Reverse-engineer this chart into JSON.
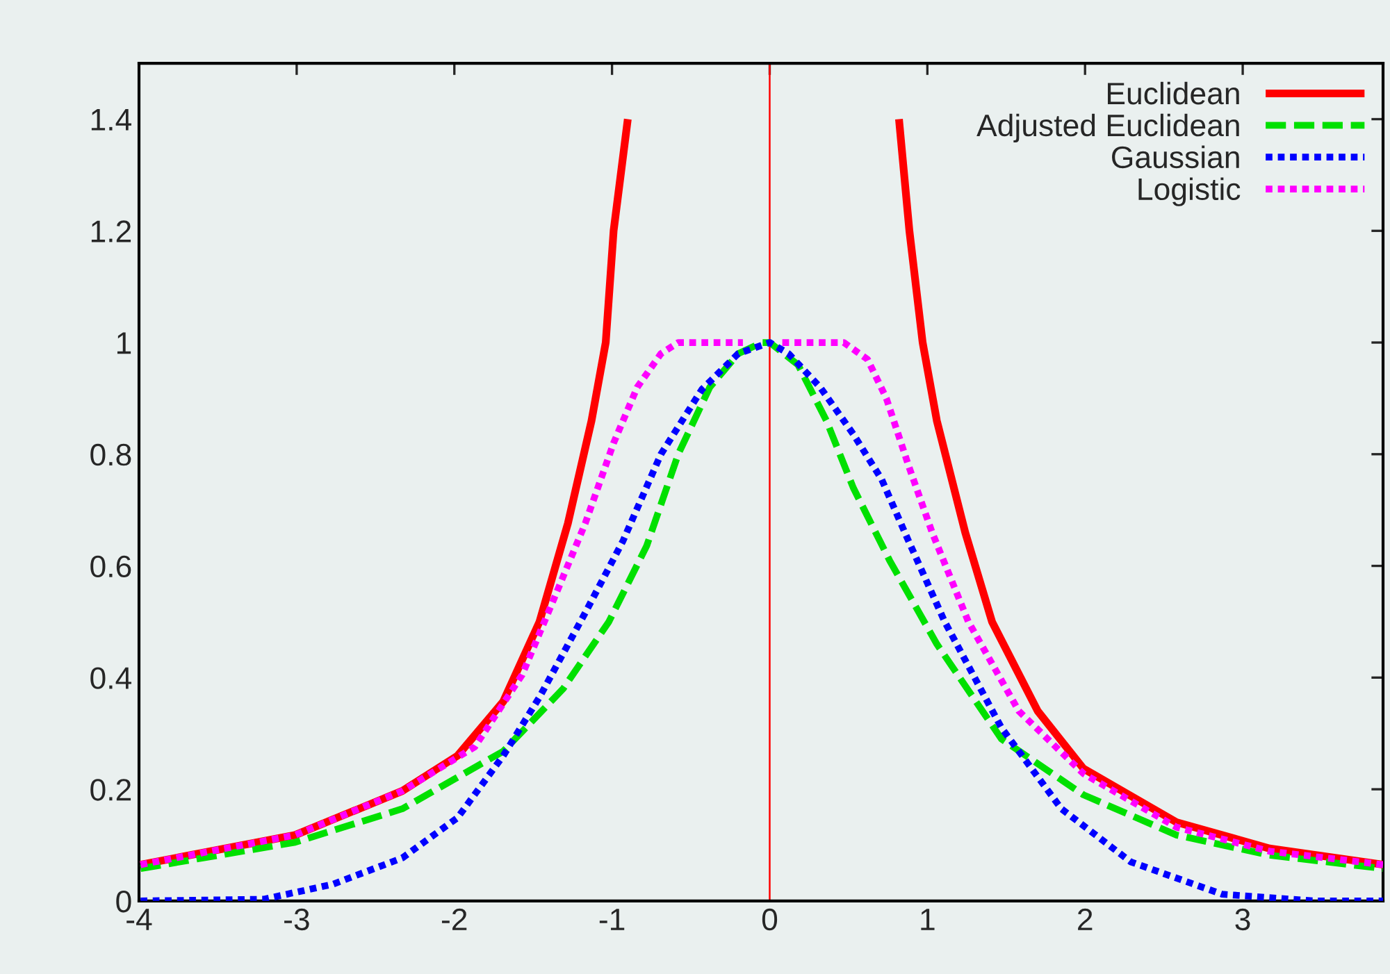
{
  "chart_data": {
    "type": "line",
    "xlim": [
      -4,
      3.89
    ],
    "ylim": [
      0,
      1.5
    ],
    "xticks": [
      -4,
      -3,
      -2,
      -1,
      0,
      1,
      2,
      3
    ],
    "yticks": [
      0,
      0.2,
      0.4,
      0.6,
      0.8,
      1,
      1.2,
      1.4
    ],
    "grid": false,
    "legend": "top right",
    "ref_lines": [
      {
        "axis": "x",
        "value": 0,
        "color": "#ff0000"
      }
    ],
    "series": [
      {
        "name": "Euclidean",
        "color": "#ff0000",
        "line_style": "solid",
        "x": [
          -3.99,
          -3.01,
          -2.33,
          -1.98,
          -1.69,
          -1.46,
          -1.28,
          -1.13,
          -1.04,
          -0.99,
          -0.9,
          null,
          0.82,
          0.886,
          0.97,
          1.06,
          1.24,
          1.41,
          1.7,
          1.99,
          2.58,
          3.17,
          3.89
        ],
        "values": [
          0.065,
          0.118,
          0.197,
          0.26,
          0.357,
          0.5,
          0.676,
          0.86,
          1.0,
          1.2,
          1.4,
          null,
          1.4,
          1.2,
          1.0,
          0.86,
          0.66,
          0.5,
          0.34,
          0.237,
          0.141,
          0.094,
          0.065
        ]
      },
      {
        "name": "Adjusted Euclidean",
        "color": "#00e000",
        "line_style": "dashed",
        "x": [
          -3.99,
          -3.01,
          -2.33,
          -1.69,
          -1.31,
          -1.02,
          -0.78,
          -0.58,
          -0.38,
          -0.2,
          -0.05,
          0.0,
          0.18,
          0.36,
          0.53,
          0.76,
          1.06,
          1.47,
          1.99,
          2.58,
          3.17,
          3.89
        ],
        "values": [
          0.058,
          0.105,
          0.165,
          0.268,
          0.38,
          0.5,
          0.636,
          0.8,
          0.92,
          0.98,
          1.0,
          1.0,
          0.96,
          0.86,
          0.74,
          0.61,
          0.46,
          0.29,
          0.19,
          0.118,
          0.082,
          0.058
        ]
      },
      {
        "name": "Gaussian",
        "color": "#0000ff",
        "line_style": "dotted",
        "x": [
          -3.99,
          -3.21,
          -2.77,
          -2.33,
          -1.98,
          -1.69,
          -1.46,
          -1.17,
          -0.93,
          -0.69,
          -0.43,
          -0.2,
          0.0,
          0.12,
          0.32,
          0.53,
          0.71,
          0.88,
          1.11,
          1.47,
          1.85,
          2.29,
          2.87,
          3.46,
          3.89
        ],
        "values": [
          0.0,
          0.003,
          0.03,
          0.077,
          0.149,
          0.26,
          0.365,
          0.516,
          0.645,
          0.8,
          0.916,
          0.98,
          1.0,
          0.98,
          0.92,
          0.836,
          0.755,
          0.645,
          0.5,
          0.31,
          0.165,
          0.07,
          0.012,
          0.0,
          0.0
        ]
      },
      {
        "name": "Logistic",
        "color": "#ff00ff",
        "line_style": "dotted",
        "x": [
          -3.99,
          -3.01,
          -2.33,
          -1.87,
          -1.57,
          -1.37,
          -1.17,
          -0.99,
          -0.84,
          -0.69,
          -0.58,
          -0.17,
          null,
          0.08,
          0.47,
          0.62,
          0.74,
          0.88,
          1.03,
          1.26,
          1.58,
          1.99,
          2.58,
          3.17,
          3.89
        ],
        "values": [
          0.065,
          0.118,
          0.197,
          0.276,
          0.405,
          0.54,
          0.676,
          0.82,
          0.92,
          0.98,
          1.0,
          1.0,
          null,
          1.0,
          1.0,
          0.97,
          0.9,
          0.78,
          0.66,
          0.5,
          0.34,
          0.228,
          0.132,
          0.089,
          0.065
        ]
      }
    ]
  }
}
